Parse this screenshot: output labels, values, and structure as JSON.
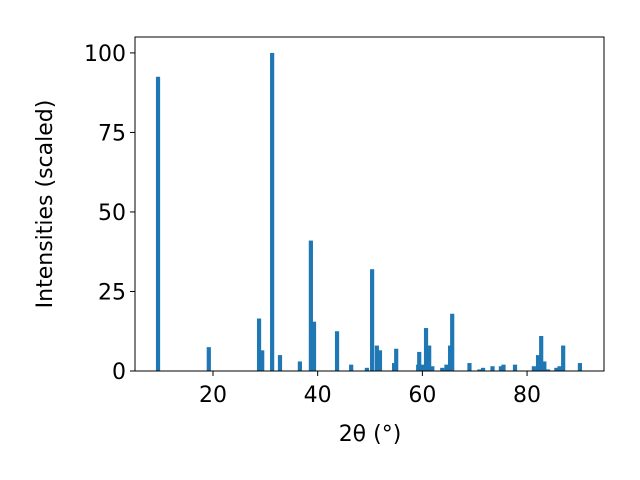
{
  "chart_data": {
    "type": "bar",
    "xlabel": "2θ (°)",
    "ylabel": "Intensities (scaled)",
    "color": "#1f77b4",
    "bar_width": 0.8,
    "grid": false,
    "x": [
      9.5,
      19.2,
      28.8,
      29.4,
      31.3,
      32.8,
      36.6,
      38.7,
      39.3,
      43.7,
      46.4,
      49.4,
      50.4,
      51.3,
      51.9,
      54.6,
      55.0,
      59.2,
      59.4,
      60.0,
      60.7,
      61.3,
      61.9,
      63.8,
      64.6,
      65.3,
      65.7,
      69.0,
      70.9,
      71.6,
      73.4,
      75.0,
      75.5,
      77.7,
      81.3,
      82.1,
      82.7,
      83.3,
      84.0,
      85.6,
      86.2,
      86.9,
      90.1
    ],
    "values": [
      92.5,
      7.5,
      16.5,
      6.5,
      100,
      5,
      3,
      41,
      15.5,
      12.5,
      2,
      1,
      32,
      8,
      6.5,
      2.5,
      7,
      2,
      6,
      2,
      13.5,
      8,
      1.5,
      1,
      2,
      8,
      18,
      2.5,
      0.5,
      1,
      1.5,
      1.5,
      2,
      2,
      1.5,
      5,
      11,
      3,
      0.5,
      1,
      1.5,
      8,
      2.5
    ],
    "xlim": [
      5.1,
      94.7
    ],
    "ylim": [
      0,
      105
    ],
    "xticks": [
      20,
      40,
      60,
      80
    ],
    "yticks": [
      0,
      25,
      50,
      75,
      100
    ]
  }
}
